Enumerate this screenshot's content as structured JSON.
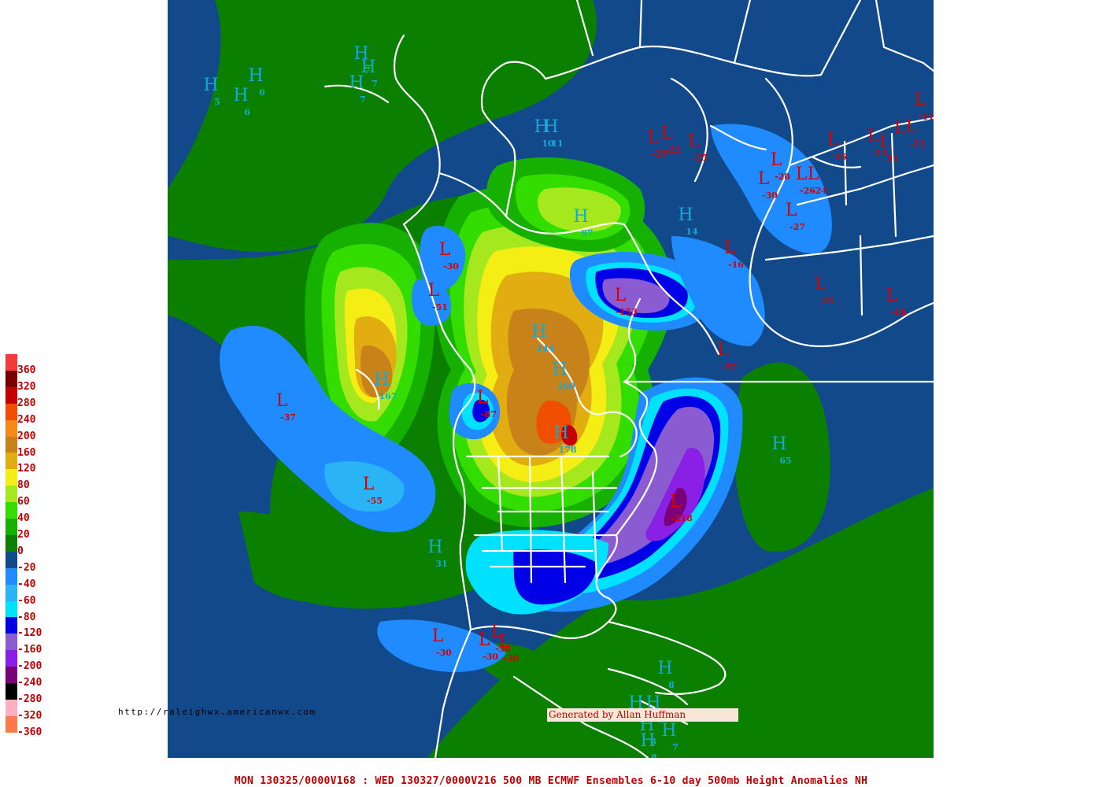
{
  "colors": {
    "scale": [
      {
        "label": "360",
        "color": "#f23c3c"
      },
      {
        "label": "320",
        "color": "#7a0000"
      },
      {
        "label": "280",
        "color": "#c40000"
      },
      {
        "label": "240",
        "color": "#f04e00"
      },
      {
        "label": "200",
        "color": "#f58a1b"
      },
      {
        "label": "160",
        "color": "#c8821a"
      },
      {
        "label": "120",
        "color": "#e2ad10"
      },
      {
        "label": "80",
        "color": "#f5ee15"
      },
      {
        "label": "60",
        "color": "#a6e81e"
      },
      {
        "label": "40",
        "color": "#33dd00"
      },
      {
        "label": "20",
        "color": "#15b000"
      },
      {
        "label": "0",
        "color": "#0a7f00"
      },
      {
        "label": "-20",
        "color": "#11498a"
      },
      {
        "label": "-40",
        "color": "#1f8bff"
      },
      {
        "label": "-60",
        "color": "#2ab4f5"
      },
      {
        "label": "-80",
        "color": "#00e0ff"
      },
      {
        "label": "-120",
        "color": "#0000e6"
      },
      {
        "label": "-160",
        "color": "#8a5bd1"
      },
      {
        "label": "-200",
        "color": "#8a20e6"
      },
      {
        "label": "-240",
        "color": "#7a007a"
      },
      {
        "label": "-280",
        "color": "#000000"
      },
      {
        "label": "-320",
        "color": "#ffb0c0"
      },
      {
        "label": "-360",
        "color": "#ff7a4a"
      }
    ],
    "high_marker": "#16a9d8",
    "low_marker": "#d80000",
    "coast": "#ffffff"
  },
  "markers": [
    {
      "t": "H",
      "v": "5"
    },
    {
      "t": "H",
      "v": "6"
    },
    {
      "t": "H",
      "v": "6"
    },
    {
      "t": "H",
      "v": "7"
    },
    {
      "t": "H",
      "v": "7"
    },
    {
      "t": "H",
      "v": "7"
    },
    {
      "t": "H",
      "v": "10"
    },
    {
      "t": "H",
      "v": "11"
    },
    {
      "t": "H",
      "v": "97"
    },
    {
      "t": "H",
      "v": "14"
    },
    {
      "t": "H",
      "v": "144"
    },
    {
      "t": "H",
      "v": "167"
    },
    {
      "t": "H",
      "v": "160"
    },
    {
      "t": "H",
      "v": "178"
    },
    {
      "t": "H",
      "v": "65"
    },
    {
      "t": "H",
      "v": "31"
    },
    {
      "t": "H",
      "v": "8"
    },
    {
      "t": "H",
      "v": "8"
    },
    {
      "t": "H",
      "v": "8"
    },
    {
      "t": "H",
      "v": "8"
    },
    {
      "t": "H",
      "v": "7"
    },
    {
      "t": "H",
      "v": "8"
    },
    {
      "t": "L",
      "v": "-29"
    },
    {
      "t": "L",
      "v": "-22"
    },
    {
      "t": "L",
      "v": "-25"
    },
    {
      "t": "L",
      "v": "-28"
    },
    {
      "t": "L",
      "v": "-30"
    },
    {
      "t": "L",
      "v": "-26"
    },
    {
      "t": "L",
      "v": "-24"
    },
    {
      "t": "L",
      "v": "-27"
    },
    {
      "t": "L",
      "v": "-15"
    },
    {
      "t": "L",
      "v": "-13"
    },
    {
      "t": "L",
      "v": "-11"
    },
    {
      "t": "L",
      "v": "-11"
    },
    {
      "t": "L",
      "v": "-11"
    },
    {
      "t": "L",
      "v": "-16"
    },
    {
      "t": "L",
      "v": "-21"
    },
    {
      "t": "L",
      "v": "-14"
    },
    {
      "t": "L",
      "v": "-30"
    },
    {
      "t": "L",
      "v": "-51"
    },
    {
      "t": "L",
      "v": "-153"
    },
    {
      "t": "L",
      "v": "-57"
    },
    {
      "t": "L",
      "v": "-87"
    },
    {
      "t": "L",
      "v": "-37"
    },
    {
      "t": "L",
      "v": "-55"
    },
    {
      "t": "L",
      "v": "-218"
    },
    {
      "t": "L",
      "v": "-30"
    },
    {
      "t": "L",
      "v": "-30"
    },
    {
      "t": "L",
      "v": "-30"
    },
    {
      "t": "L",
      "v": "-30"
    },
    {
      "t": "L",
      "v": ""
    }
  ],
  "url_text": "http://raleighwx.americanwx.com",
  "credit_text": "Generated by Allan Huffman",
  "caption": "MON 130325/0000V168 : WED 130327/0000V216  500 MB ECMWF Ensembles 6-10 day 500mb Height Anomalies NH"
}
